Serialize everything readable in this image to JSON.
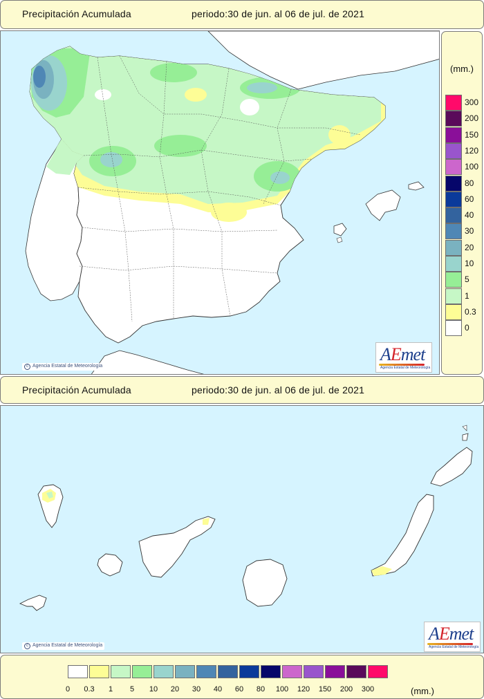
{
  "header_top": {
    "title": "Precipitación Acumulada",
    "period": "periodo:30 de jun. al 06 de jul. de 2021"
  },
  "header_middle": {
    "title": "Precipitación Acumulada",
    "period": "periodo:30 de jun. al 06 de jul. de 2021"
  },
  "copyright": "Agencia Estatal de Meteorología",
  "logo": {
    "word_a": "A",
    "word_e": "E",
    "word_rest": "met",
    "sub": "Agencia Estatal de Meteorología"
  },
  "legend": {
    "unit": "(mm.)",
    "levels": [
      "0",
      "0.3",
      "1",
      "5",
      "10",
      "20",
      "30",
      "40",
      "60",
      "80",
      "100",
      "120",
      "150",
      "200",
      "300"
    ],
    "colors": [
      "#ffffff",
      "#fdfd96",
      "#c6f7c6",
      "#96ee96",
      "#99d4cd",
      "#7ab2c0",
      "#4f87b5",
      "#33639e",
      "#0b3a9a",
      "#06066a",
      "#cc66cc",
      "#9955cc",
      "#8a0f99",
      "#5a0a5a",
      "#ff0a6a"
    ]
  },
  "colors": {
    "sea": "#d6f4ff",
    "panel": "#fdfbd0",
    "land": "#ffffff"
  }
}
